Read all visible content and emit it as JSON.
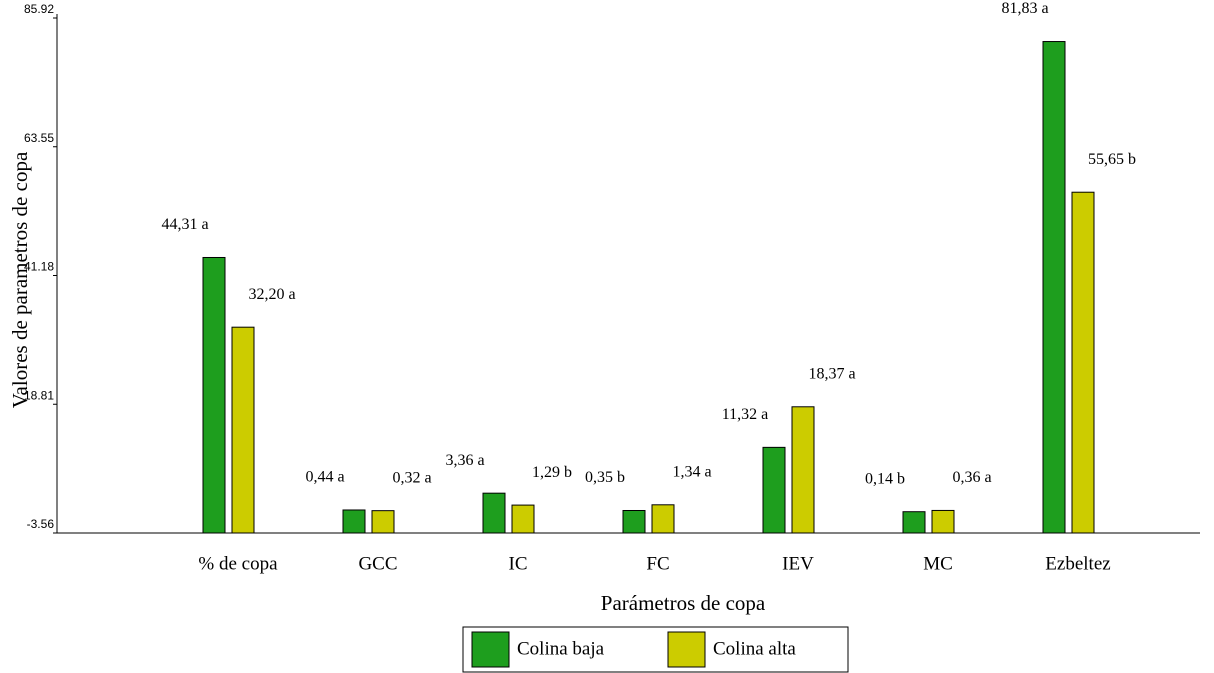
{
  "chart_data": {
    "type": "bar",
    "x_label": "Parámetros de copa",
    "y_label": "Valores de parametros de copa",
    "categories": [
      "% de copa",
      "GCC",
      "IC",
      "FC",
      "IEV",
      "MC",
      "Ezbeltez"
    ],
    "series": [
      {
        "name": "Colina baja",
        "color": "#1e9e1e",
        "values": [
          44.31,
          0.44,
          3.36,
          0.35,
          11.32,
          0.14,
          81.83
        ],
        "value_labels": [
          "44,31 a",
          "0,44 a",
          "3,36 a",
          "0,35 b",
          "11,32 a",
          "0,14 b",
          "81,83 a"
        ]
      },
      {
        "name": "Colina alta",
        "color": "#cccc00",
        "values": [
          32.2,
          0.32,
          1.29,
          1.34,
          18.37,
          0.36,
          55.65
        ],
        "value_labels": [
          "32,20 a",
          "0,32 a",
          "1,29 b",
          "1,34 a",
          "18,37 a",
          "0,36 a",
          "55,65 b"
        ]
      }
    ],
    "ylim": [
      -3.56,
      85.92
    ],
    "yticks": [
      -3.56,
      18.81,
      41.18,
      63.55,
      85.92
    ],
    "grid": false,
    "legend": "bottom"
  }
}
